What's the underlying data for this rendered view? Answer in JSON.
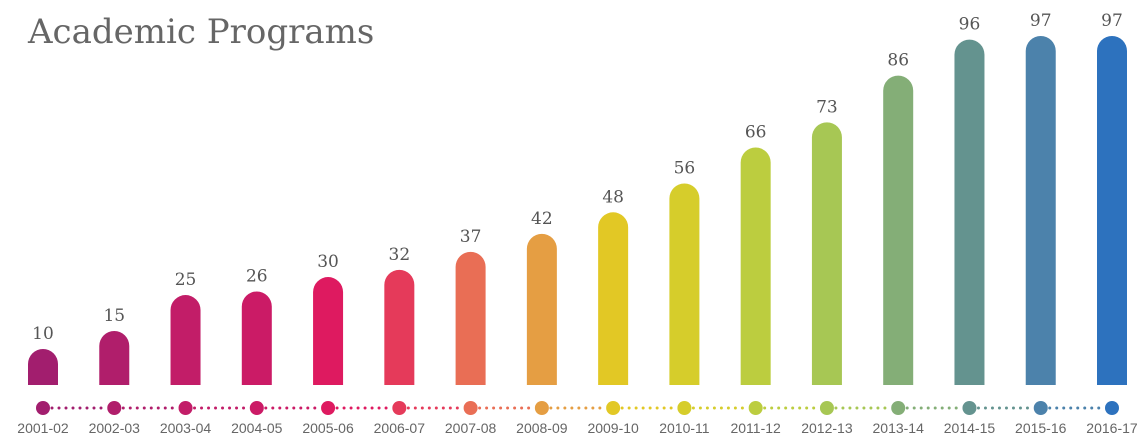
{
  "title": "Academic Programs",
  "chart_data": {
    "type": "bar",
    "title": "Academic Programs",
    "categories": [
      "2001-02",
      "2002-03",
      "2003-04",
      "2004-05",
      "2005-06",
      "2006-07",
      "2007-08",
      "2008-09",
      "2009-10",
      "2010-11",
      "2011-12",
      "2012-13",
      "2013-14",
      "2014-15",
      "2015-16",
      "2016-17"
    ],
    "values": [
      10,
      15,
      25,
      26,
      30,
      32,
      37,
      42,
      48,
      56,
      66,
      73,
      86,
      96,
      97,
      97
    ],
    "colors": [
      "#a21e6e",
      "#b01e6b",
      "#c21d68",
      "#cb1b66",
      "#de1a60",
      "#e53a5a",
      "#e96e55",
      "#e59e43",
      "#e2c825",
      "#d6cd2b",
      "#bccd3f",
      "#a7c754",
      "#84ae77",
      "#64938f",
      "#4c82ab",
      "#2d72be"
    ],
    "data_labels": true,
    "grid": false,
    "legend": "none"
  }
}
